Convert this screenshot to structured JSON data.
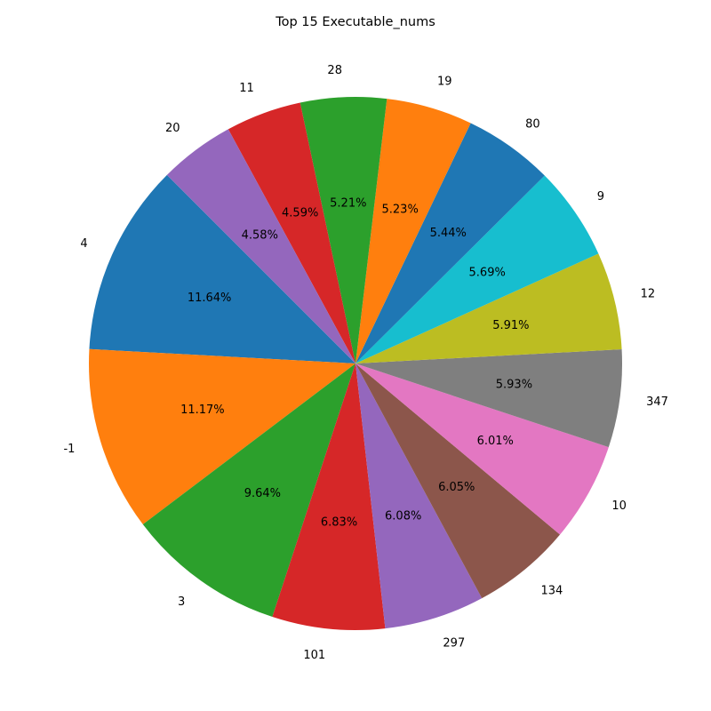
{
  "chart_data": {
    "type": "pie",
    "title": "Top 15 Executable_nums",
    "start_angle_deg": 135,
    "direction": "counterclockwise",
    "slices": [
      {
        "label": "4",
        "value": 11.64,
        "pct_text": "11.64%",
        "color": "#1f77b4"
      },
      {
        "label": "-1",
        "value": 11.17,
        "pct_text": "11.17%",
        "color": "#ff7f0e"
      },
      {
        "label": "3",
        "value": 9.64,
        "pct_text": "9.64%",
        "color": "#2ca02c"
      },
      {
        "label": "101",
        "value": 6.83,
        "pct_text": "6.83%",
        "color": "#d62728"
      },
      {
        "label": "297",
        "value": 6.08,
        "pct_text": "6.08%",
        "color": "#9467bd"
      },
      {
        "label": "134",
        "value": 6.05,
        "pct_text": "6.05%",
        "color": "#8c564b"
      },
      {
        "label": "10",
        "value": 6.01,
        "pct_text": "6.01%",
        "color": "#e377c2"
      },
      {
        "label": "347",
        "value": 5.93,
        "pct_text": "5.93%",
        "color": "#7f7f7f"
      },
      {
        "label": "12",
        "value": 5.91,
        "pct_text": "5.91%",
        "color": "#bcbd22"
      },
      {
        "label": "9",
        "value": 5.69,
        "pct_text": "5.69%",
        "color": "#17becf"
      },
      {
        "label": "80",
        "value": 5.44,
        "pct_text": "5.44%",
        "color": "#1f77b4"
      },
      {
        "label": "19",
        "value": 5.23,
        "pct_text": "5.23%",
        "color": "#ff7f0e"
      },
      {
        "label": "28",
        "value": 5.21,
        "pct_text": "5.21%",
        "color": "#2ca02c"
      },
      {
        "label": "11",
        "value": 4.59,
        "pct_text": "4.59%",
        "color": "#d62728"
      },
      {
        "label": "20",
        "value": 4.58,
        "pct_text": "4.58%",
        "color": "#9467bd"
      }
    ]
  }
}
